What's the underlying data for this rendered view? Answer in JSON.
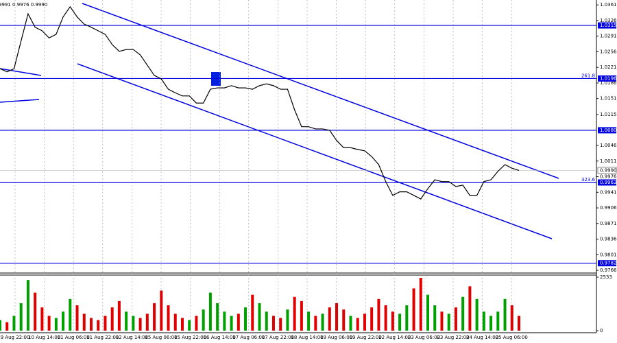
{
  "chart_data": {
    "type": "line",
    "header_text": "9991 0.9976 0.9990",
    "series": [
      {
        "color": "#000000",
        "values": [
          1.0218,
          1.0211,
          1.0218,
          1.028,
          1.0341,
          1.0311,
          1.0303,
          1.0287,
          1.0295,
          1.0334,
          1.0357,
          1.0334,
          1.0318,
          1.0311,
          1.0303,
          1.0295,
          1.0272,
          1.0257,
          1.0261,
          1.0261,
          1.0249,
          1.0226,
          1.0203,
          1.0195,
          1.0172,
          1.0164,
          1.0157,
          1.0157,
          1.0141,
          1.0141,
          1.0172,
          1.0175,
          1.0175,
          1.018,
          1.0175,
          1.0175,
          1.0172,
          1.018,
          1.0184,
          1.018,
          1.0172,
          1.0172,
          1.0126,
          1.0088,
          1.0088,
          1.0083,
          1.0083,
          1.008,
          1.0057,
          1.0041,
          1.0041,
          1.0037,
          1.0034,
          1.0021,
          1.0003,
          0.9965,
          0.9934,
          0.9942,
          0.9942,
          0.9934,
          0.9926,
          0.9949,
          0.9969,
          0.9965,
          0.9965,
          0.9954,
          0.9957,
          0.9934,
          0.9934,
          0.9965,
          0.9969,
          0.9988,
          1.0003,
          0.9995,
          0.999
        ]
      }
    ],
    "volume": {
      "up_color": "#00a000",
      "down_color": "#e00000",
      "ylim": [
        0,
        2533
      ],
      "yticks": [
        0,
        2533
      ],
      "values": [
        500,
        400,
        700,
        1300,
        2400,
        1800,
        1100,
        700,
        600,
        900,
        1500,
        1200,
        800,
        600,
        500,
        700,
        1100,
        1400,
        900,
        700,
        600,
        800,
        1300,
        1900,
        1200,
        800,
        600,
        500,
        700,
        1000,
        1800,
        1300,
        900,
        700,
        800,
        1100,
        1700,
        1300,
        900,
        700,
        600,
        1000,
        1600,
        1400,
        900,
        700,
        800,
        1100,
        1300,
        1000,
        700,
        600,
        800,
        1100,
        1500,
        1200,
        900,
        800,
        1200,
        2000,
        2500,
        1700,
        1200,
        900,
        800,
        1100,
        1600,
        2100,
        1500,
        900,
        700,
        900,
        1500,
        1200,
        700
      ]
    },
    "ylim": [
      0.976,
      1.0372
    ],
    "yticks": [
      1.0361,
      1.0326,
      1.0291,
      1.0256,
      1.0221,
      1.0186,
      1.0151,
      1.0115,
      1.0046,
      1.0011,
      0.9976,
      0.9941,
      0.9906,
      0.9871,
      0.9836,
      0.9801,
      0.9766
    ],
    "levels": [
      1.0315,
      1.0196,
      {
        "value": 1.008,
        "label": "1.0080"
      },
      0.9963,
      0.9782
    ],
    "fib_labels": [
      {
        "value": 1.0196,
        "label": "261.8"
      },
      {
        "value": 0.9963,
        "label": "323.6"
      }
    ],
    "last_price": {
      "value": 0.999,
      "label": "0.9990"
    },
    "time_labels": [
      "9 Aug 22:00",
      "10 Aug 14:00",
      "11 Aug 06:00",
      "11 Aug 22:00",
      "12 Aug 14:00",
      "15 Aug 06:00",
      "15 Aug 22:00",
      "16 Aug 14:00",
      "17 Aug 06:00",
      "17 Aug 22:00",
      "18 Aug 14:00",
      "19 Aug 06:00",
      "19 Aug 22:00",
      "22 Aug 14:00",
      "23 Aug 06:00",
      "23 Aug 22:00",
      "24 Aug 14:00",
      "25 Aug 06:00"
    ]
  }
}
